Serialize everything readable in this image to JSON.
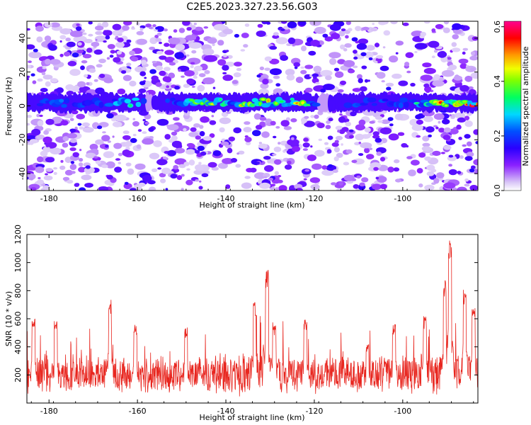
{
  "title": "C2E5.2023.327.23.56.G03",
  "chart_data": [
    {
      "type": "heatmap",
      "xlabel": "Height of straight line (km)",
      "ylabel": "Frequency (Hz)",
      "xlim": [
        -185,
        -83
      ],
      "ylim": [
        -50,
        50
      ],
      "xticks": [
        -180,
        -160,
        -140,
        -120,
        -100
      ],
      "xtick_labels": [
        "-180",
        "-160",
        "-140",
        "-120",
        "-100"
      ],
      "yticks": [
        40,
        20,
        0,
        -20,
        -40
      ],
      "ytick_labels": [
        "40",
        "20",
        "0",
        "-20",
        "-40"
      ],
      "colorbar": {
        "label": "Normalized spectral amplitude",
        "range": [
          0,
          0.62
        ],
        "ticks": [
          0.0,
          0.2,
          0.4,
          0.6
        ],
        "tick_labels": [
          "0.0",
          "0.2",
          "0.4",
          "0.6"
        ],
        "colormap": [
          "#ffffff",
          "#c9a6f5",
          "#7a00ff",
          "#1a00ff",
          "#00c8ff",
          "#00ff50",
          "#d0ff00",
          "#ff9a00",
          "#ff0000",
          "#ff0080"
        ]
      },
      "band": {
        "center_frequency": 2,
        "half_width": 5,
        "description_points": [
          {
            "x": -183,
            "amp": 0.2
          },
          {
            "x": -178,
            "amp": 0.28
          },
          {
            "x": -175,
            "amp": 0.22
          },
          {
            "x": -170,
            "amp": 0.25
          },
          {
            "x": -165,
            "amp": 0.3
          },
          {
            "x": -160,
            "amp": 0.32
          },
          {
            "x": -156,
            "amp": 0.18
          },
          {
            "x": -150,
            "amp": 0.3
          },
          {
            "x": -145,
            "amp": 0.48
          },
          {
            "x": -140,
            "amp": 0.35
          },
          {
            "x": -135,
            "amp": 0.5
          },
          {
            "x": -130,
            "amp": 0.45
          },
          {
            "x": -126,
            "amp": 0.35
          },
          {
            "x": -123,
            "amp": 0.52
          },
          {
            "x": -118,
            "amp": 0.15
          },
          {
            "x": -113,
            "amp": 0.22
          },
          {
            "x": -108,
            "amp": 0.28
          },
          {
            "x": -103,
            "amp": 0.25
          },
          {
            "x": -98,
            "amp": 0.3
          },
          {
            "x": -93,
            "amp": 0.42
          },
          {
            "x": -90,
            "amp": 0.58
          },
          {
            "x": -87,
            "amp": 0.5
          },
          {
            "x": -84,
            "amp": 0.6
          }
        ]
      }
    },
    {
      "type": "line",
      "xlabel": "Height of straight line (km)",
      "ylabel": "SNR (10 * v/v)",
      "xlim": [
        -185,
        -83
      ],
      "ylim": [
        0,
        1200
      ],
      "xticks": [
        -180,
        -160,
        -140,
        -120,
        -100
      ],
      "xtick_labels": [
        "-180",
        "-160",
        "-140",
        "-120",
        "-100"
      ],
      "yticks": [
        200,
        400,
        600,
        800,
        1000,
        1200
      ],
      "ytick_labels": [
        "200",
        "400",
        "600",
        "800",
        "1000",
        "1200"
      ],
      "line_color": "#e8261f",
      "peaks": [
        {
          "x": -183.5,
          "y": 600
        },
        {
          "x": -178.5,
          "y": 590
        },
        {
          "x": -166.2,
          "y": 740
        },
        {
          "x": -160.5,
          "y": 560
        },
        {
          "x": -149,
          "y": 540
        },
        {
          "x": -133.5,
          "y": 720
        },
        {
          "x": -130.7,
          "y": 960
        },
        {
          "x": -129,
          "y": 560
        },
        {
          "x": -122,
          "y": 600
        },
        {
          "x": -108,
          "y": 420
        },
        {
          "x": -102,
          "y": 570
        },
        {
          "x": -95,
          "y": 620
        },
        {
          "x": -90.5,
          "y": 880
        },
        {
          "x": -89.3,
          "y": 1200
        },
        {
          "x": -86,
          "y": 820
        },
        {
          "x": -84,
          "y": 700
        }
      ],
      "baseline_mean": 200,
      "baseline_noise": 110
    }
  ]
}
